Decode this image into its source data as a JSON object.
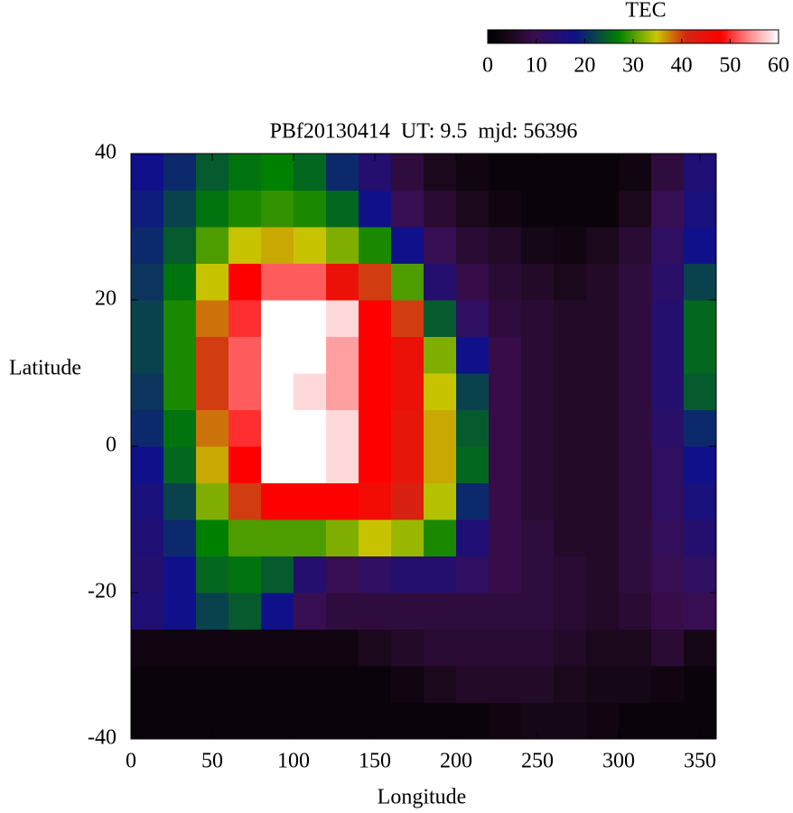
{
  "chart_data": {
    "type": "heatmap",
    "title": "PBf20130414  UT: 9.5  mjd: 56396",
    "x_label": "Longitude",
    "y_label": "Latitude",
    "colorbar_label": "TEC",
    "xlim": [
      0,
      360
    ],
    "ylim": [
      -40,
      40
    ],
    "xticks": [
      0,
      50,
      100,
      150,
      200,
      250,
      300,
      350
    ],
    "yticks": [
      -40,
      -20,
      0,
      20,
      40
    ],
    "zlim": [
      0,
      60
    ],
    "zticks": [
      0,
      10,
      20,
      30,
      40,
      50,
      60
    ],
    "x": [
      10,
      30,
      50,
      70,
      90,
      110,
      130,
      150,
      170,
      190,
      210,
      230,
      250,
      270,
      290,
      310,
      330,
      350
    ],
    "y": [
      -37.5,
      -32.5,
      -27.5,
      -22.5,
      -17.5,
      -12.5,
      -7.5,
      -2.5,
      2.5,
      7.5,
      12.5,
      17.5,
      22.5,
      27.5,
      32.5,
      37.5
    ],
    "z": [
      [
        2,
        2,
        2,
        2,
        2,
        2,
        2,
        2,
        2,
        2,
        2,
        3,
        4,
        4,
        3,
        2,
        2,
        2
      ],
      [
        2,
        2,
        2,
        2,
        2,
        2,
        2,
        2,
        3,
        5,
        6,
        6,
        6,
        5,
        4,
        4,
        3,
        2
      ],
      [
        3,
        3,
        3,
        3,
        3,
        3,
        3,
        5,
        6,
        7,
        7,
        7,
        7,
        6,
        5,
        5,
        7,
        4
      ],
      [
        15,
        18,
        22,
        24,
        18,
        10,
        8,
        8,
        8,
        8,
        8,
        8,
        8,
        7,
        6,
        7,
        9,
        10
      ],
      [
        14,
        18,
        25,
        26,
        24,
        14,
        10,
        12,
        14,
        14,
        12,
        9,
        8,
        7,
        6,
        8,
        10,
        12
      ],
      [
        15,
        20,
        27,
        30,
        30,
        30,
        32,
        35,
        33,
        28,
        15,
        9,
        8,
        6,
        6,
        8,
        11,
        14
      ],
      [
        16,
        22,
        32,
        40,
        48,
        48,
        48,
        46,
        42,
        34,
        20,
        9,
        7,
        6,
        6,
        8,
        12,
        16
      ],
      [
        18,
        25,
        36,
        48,
        60,
        60,
        58,
        48,
        44,
        36,
        25,
        9,
        7,
        6,
        6,
        8,
        12,
        18
      ],
      [
        20,
        26,
        38,
        50,
        60,
        60,
        58,
        48,
        44,
        36,
        24,
        9,
        7,
        6,
        6,
        8,
        13,
        20
      ],
      [
        21,
        28,
        40,
        52,
        60,
        58,
        55,
        48,
        45,
        35,
        22,
        9,
        7,
        6,
        6,
        8,
        14,
        24
      ],
      [
        22,
        28,
        40,
        52,
        60,
        60,
        55,
        48,
        45,
        32,
        18,
        9,
        7,
        6,
        6,
        8,
        14,
        25
      ],
      [
        22,
        28,
        38,
        50,
        60,
        60,
        58,
        48,
        40,
        24,
        12,
        8,
        7,
        6,
        6,
        8,
        14,
        25
      ],
      [
        21,
        26,
        35,
        48,
        52,
        52,
        45,
        40,
        30,
        14,
        9,
        7,
        6,
        5,
        6,
        8,
        13,
        22
      ],
      [
        20,
        24,
        30,
        35,
        36,
        35,
        32,
        28,
        18,
        10,
        7,
        6,
        4,
        3,
        5,
        7,
        12,
        18
      ],
      [
        19,
        22,
        26,
        28,
        29,
        28,
        25,
        18,
        10,
        7,
        5,
        3,
        2,
        2,
        2,
        5,
        10,
        16
      ],
      [
        18,
        20,
        24,
        26,
        27,
        25,
        20,
        14,
        8,
        5,
        3,
        2,
        2,
        2,
        2,
        3,
        8,
        15
      ]
    ]
  }
}
